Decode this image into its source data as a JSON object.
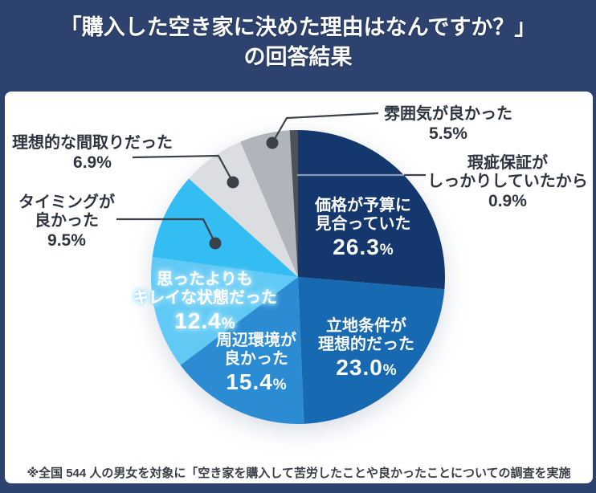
{
  "header": {
    "title_line1": "「購入した空き家に決めた理由はなんですか？」",
    "title_line2": "の回答結果"
  },
  "percent_sign": "%",
  "chart_data": {
    "type": "pie",
    "title": "「購入した空き家に決めた理由はなんですか？」の回答結果",
    "start_angle_deg": 0,
    "direction": "clockwise",
    "legend_position": "none",
    "slices": [
      {
        "label": "価格が予算に見合っていた",
        "label_lines": [
          "価格が予算に",
          "見合っていた"
        ],
        "value": 26.3,
        "pct_text": "26.3",
        "color": "#14386d",
        "label_placement": "inside"
      },
      {
        "label": "立地条件が理想的だった",
        "label_lines": [
          "立地条件が",
          "理想的だった"
        ],
        "value": 23.0,
        "pct_text": "23.0",
        "color": "#1769b2",
        "label_placement": "inside"
      },
      {
        "label": "周辺環境が良かった",
        "label_lines": [
          "周辺環境が",
          "良かった"
        ],
        "value": 15.4,
        "pct_text": "15.4",
        "color": "#2b8bd3",
        "label_placement": "inside"
      },
      {
        "label": "思ったよりもキレイな状態だった",
        "label_lines": [
          "思ったよりも",
          "キレイな状態だった"
        ],
        "value": 12.4,
        "pct_text": "12.4",
        "color": "#61c9f5",
        "label_placement": "inside"
      },
      {
        "label": "タイミングが良かった",
        "label_lines": [
          "タイミングが",
          "良かった"
        ],
        "value": 9.5,
        "pct_text": "9.5",
        "color": "#33bdf2",
        "label_placement": "outside"
      },
      {
        "label": "理想的な間取りだった",
        "label_lines": [
          "理想的な間取りだった"
        ],
        "value": 6.9,
        "pct_text": "6.9",
        "color": "#dcdde1",
        "label_placement": "outside"
      },
      {
        "label": "雰囲気が良かった",
        "label_lines": [
          "雰囲気が良かった"
        ],
        "value": 5.5,
        "pct_text": "5.5",
        "color": "#b1b4ba",
        "label_placement": "outside"
      },
      {
        "label": "瑕疵保証がしっかりしていたから",
        "label_lines": [
          "瑕疵保証が",
          "しっかりしていたから"
        ],
        "value": 0.9,
        "pct_text": "0.9",
        "color": "#4d515a",
        "label_placement": "outside"
      }
    ]
  },
  "footer": {
    "note": "※全国 544 人の男女を対象に「空き家を購入して苦労したことや良かったことについての調査を実施"
  }
}
